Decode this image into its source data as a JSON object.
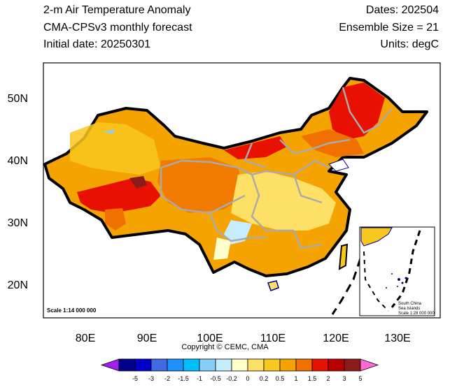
{
  "header": {
    "title": "2-m Air Temperature Anomaly",
    "model": "CMA-CPSv3 monthly forecast",
    "initial_date": "Initial date: 20250301",
    "dates": "Dates: 202504",
    "ensemble": "Ensemble Size = 21",
    "units": "Units: degC"
  },
  "axes": {
    "lat_ticks": [
      "50N",
      "40N",
      "30N",
      "20N"
    ],
    "lon_ticks": [
      "80E",
      "90E",
      "100E",
      "110E",
      "120E",
      "130E"
    ]
  },
  "scale_label": "Scale 1:14 000 000",
  "inset": {
    "line1": "South China",
    "line2": "Sea Islands",
    "line3": "Scale 1:28 000 000"
  },
  "copyright": "Copyright © CEMC, CMA",
  "colorbar": {
    "labels": [
      "-5",
      "-3",
      "-2",
      "-1.5",
      "-1",
      "-0.5",
      "-0.2",
      "0",
      "0.2",
      "0.5",
      "1",
      "1.5",
      "2",
      "3",
      "5"
    ],
    "colors": [
      "#a020f0",
      "#00008b",
      "#0000cd",
      "#4169e1",
      "#1e90ff",
      "#00bfff",
      "#87cefa",
      "#c6ecff",
      "#ffffcc",
      "#ffe066",
      "#f9c81e",
      "#f5a300",
      "#f07000",
      "#e81000",
      "#b80000",
      "#8b1a1a",
      "#ff6ad5"
    ]
  }
}
